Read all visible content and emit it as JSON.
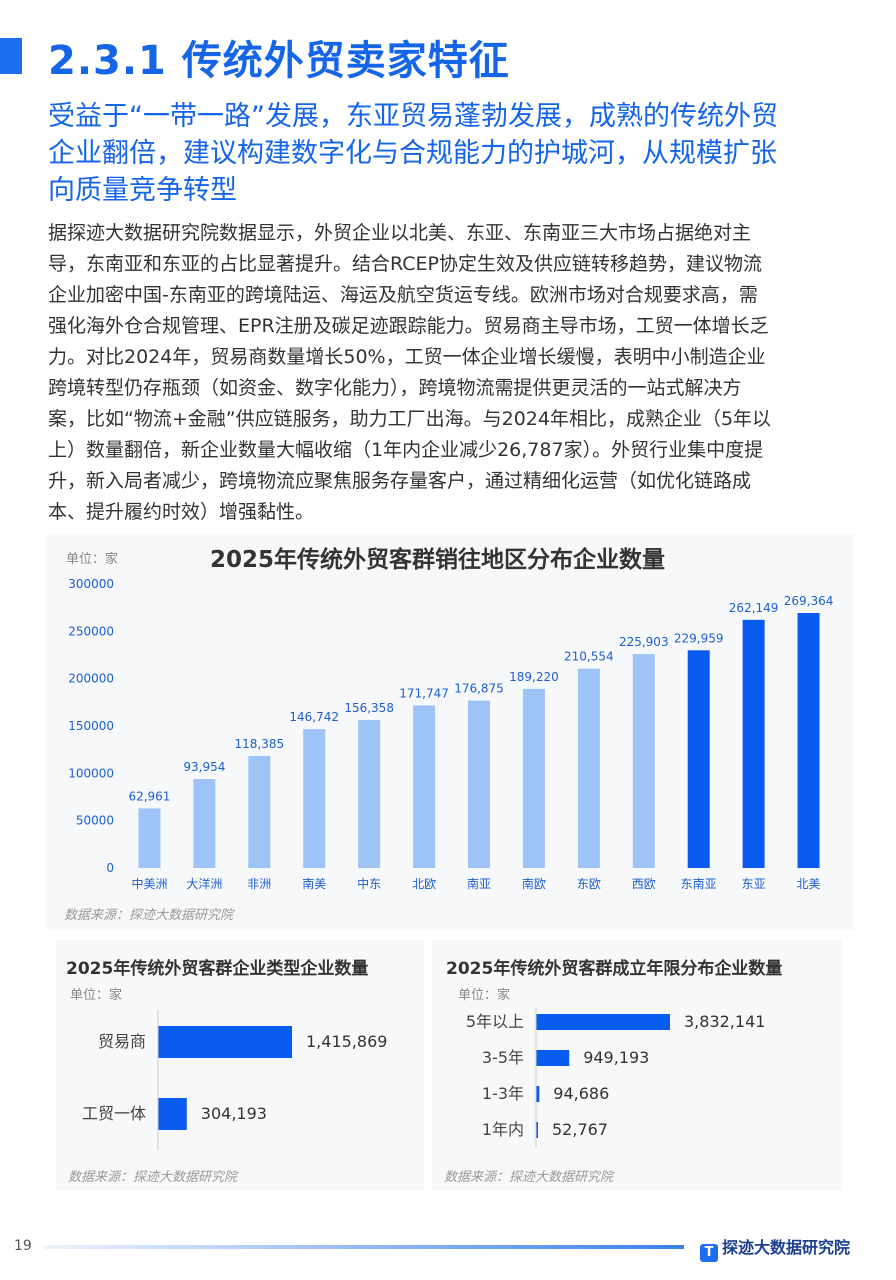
{
  "page": {
    "title": "2.3.1 传统外贸卖家特征",
    "subtitle_lines": [
      "受益于“一带一路”发展，东亚贸易蓬勃发展，成熟的传统外贸",
      "企业翻倍，建议构建数字化与合规能力的护城河，从规模扩张",
      "向质量竞争转型"
    ],
    "body_lines": [
      "据探迹大数据研究院数据显示，外贸企业以北美、东亚、东南亚三大市场占据绝对主",
      "导，东南亚和东亚的占比显著提升。结合RCEP协定生效及供应链转移趋势，建议物流",
      "企业加密中国-东南亚的跨境陆运、海运及航空货运专线。欧洲市场对合规要求高，需",
      "强化海外仓合规管理、EPR注册及碳足迹跟踪能力。贸易商主导市场，工贸一体增长乏",
      "力。对比2024年，贸易商数量增长50%，工贸一体企业增长缓慢，表明中小制造企业",
      "跨境转型仍存瓶颈（如资金、数字化能力），跨境物流需提供更灵活的一站式解决方",
      "案，比如“物流+金融”供应链服务，助力工厂出海。与2024年相比，成熟企业（5年以",
      "上）数量翻倍，新企业数量大幅收缩（1年内企业减少26,787家）。外贸行业集中度提",
      "升，新入局者减少，跨境物流应聚焦服务存量客户，通过精细化运营（如优化链路成",
      "本、提升履约时效）增强黏性。"
    ],
    "page_number": "19",
    "brand": "探迹大数据研究院",
    "brand_logo": "T"
  },
  "colors": {
    "title": "#1565e8",
    "light_bar": "#9ec3f7",
    "dark_bar": "#0a5cf0",
    "value_label": "#1d5fcf"
  },
  "chart_data": [
    {
      "type": "bar",
      "title": "2025年传统外贸客群销往地区分布企业数量",
      "unit": "单位：家",
      "source": "数据来源：探迹大数据研究院",
      "categories": [
        "中美洲",
        "大洋洲",
        "非洲",
        "南美",
        "中东",
        "北欧",
        "南亚",
        "南欧",
        "东欧",
        "西欧",
        "东南亚",
        "东亚",
        "北美"
      ],
      "values": [
        62961,
        93954,
        118385,
        146742,
        156358,
        171747,
        176875,
        189220,
        210554,
        225903,
        229959,
        262149,
        269364
      ],
      "value_labels": [
        "62,961",
        "93,954",
        "118,385",
        "146,742",
        "156,358",
        "171,747",
        "176,875",
        "189,220",
        "210,554",
        "225,903",
        "229,959",
        "262,149",
        "269,364"
      ],
      "highlight": [
        false,
        false,
        false,
        false,
        false,
        false,
        false,
        false,
        false,
        false,
        true,
        true,
        true
      ],
      "ylim": [
        0,
        300000
      ],
      "yticks": [
        "0",
        "50000",
        "100000",
        "150000",
        "200000",
        "250000",
        "300000"
      ],
      "ytick_values": [
        0,
        50000,
        100000,
        150000,
        200000,
        250000,
        300000
      ]
    },
    {
      "type": "bar",
      "orientation": "horizontal",
      "title": "2025年传统外贸客群企业类型企业数量",
      "unit": "单位：家",
      "source": "数据来源：探迹大数据研究院",
      "categories": [
        "贸易商",
        "工贸一体"
      ],
      "values": [
        1415869,
        304193
      ],
      "value_labels": [
        "1,415,869",
        "304,193"
      ]
    },
    {
      "type": "bar",
      "orientation": "horizontal",
      "title": "2025年传统外贸客群成立年限分布企业数量",
      "unit": "单位：家",
      "source": "数据来源：探迹大数据研究院",
      "categories": [
        "5年以上",
        "3-5年",
        "1-3年",
        "1年内"
      ],
      "values": [
        3832141,
        949193,
        94686,
        52767
      ],
      "value_labels": [
        "3,832,141",
        "949,193",
        "94,686",
        "52,767"
      ]
    }
  ]
}
